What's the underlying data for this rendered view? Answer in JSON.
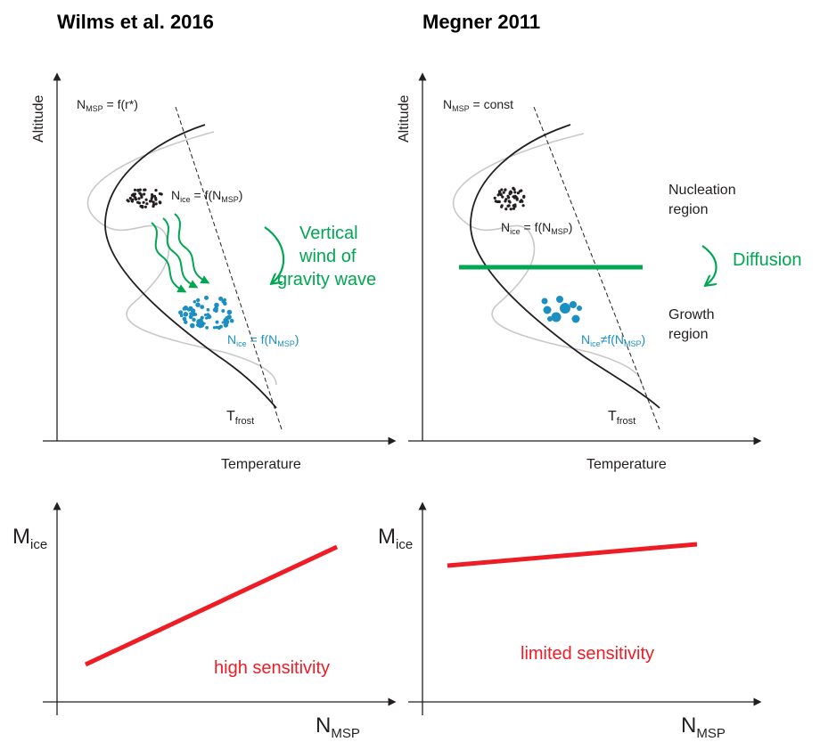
{
  "titles": {
    "left": "Wilms et al. 2016",
    "right": "Megner 2011"
  },
  "top_axes": {
    "y_label": "Altitude",
    "x_label": "Temperature",
    "t_frost_main": "T",
    "t_frost_sub": "frost"
  },
  "left_panel": {
    "nmsp_main": "N",
    "nmsp_sub": "MSP",
    "nmsp_rest": " = f(r*)",
    "nice1_main": "N",
    "nice1_sub": "ice",
    "nice1_rest": " = f(N",
    "nice1_sub2": "MSP",
    "nice1_end": ")",
    "nice2_main": "N",
    "nice2_sub": "ice",
    "nice2_rest": " = f(N",
    "nice2_sub2": "MSP",
    "nice2_end": ")",
    "wind_line1": "Vertical",
    "wind_line2": "wind of",
    "wind_line3": "gravity wave"
  },
  "right_panel": {
    "nmsp_main": "N",
    "nmsp_sub": "MSP",
    "nmsp_rest": " = const",
    "nice1_main": "N",
    "nice1_sub": "ice",
    "nice1_rest": " = f(N",
    "nice1_sub2": "MSP",
    "nice1_end": ")",
    "nice2_main": "N",
    "nice2_sub": "ice",
    "nice2_rest": "≠f(N",
    "nice2_sub2": "MSP",
    "nice2_end": ")",
    "nucleation_line1": "Nucleation",
    "nucleation_line2": "region",
    "growth_line1": "Growth",
    "growth_line2": "region",
    "diffusion": "Diffusion"
  },
  "bottom_axes": {
    "y_main": "M",
    "y_sub": "ice",
    "x_main": "N",
    "x_sub": "MSP"
  },
  "bottom_left": {
    "label": "high sensitivity"
  },
  "bottom_right": {
    "label": "limited sensitivity"
  },
  "colors": {
    "green": "#00a651",
    "blue": "#1b8fc1",
    "red": "#ee1c25",
    "gray_curve": "#c8c8c8",
    "black": "#231f20"
  }
}
